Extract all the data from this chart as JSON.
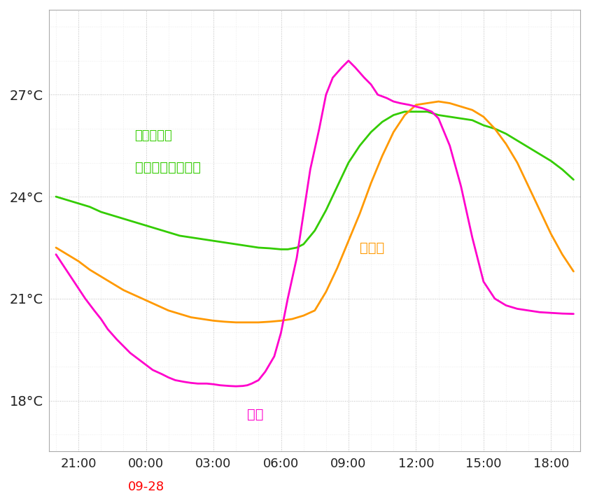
{
  "background_color": "#ffffff",
  "grid_color_major": "#bbbbbb",
  "grid_color_minor": "#dddddd",
  "color_green": "#33cc00",
  "color_orange": "#ff9900",
  "color_magenta": "#ff00cc",
  "ylim": [
    16.5,
    29.5
  ],
  "xlim": [
    -0.3,
    23.3
  ],
  "yticks": [
    18,
    21,
    24,
    27
  ],
  "ytick_labels": [
    "18°C",
    "21°C",
    "24°C",
    "27°C"
  ],
  "xtick_positions": [
    1,
    4,
    7,
    10,
    13,
    16,
    19,
    22
  ],
  "xtick_labels": [
    "21:00",
    "00:00",
    "03:00",
    "06:00",
    "09:00",
    "12:00",
    "15:00",
    "18:00"
  ],
  "date_label": "09-28",
  "date_x_pos": 4,
  "label_green1": "（無断炱）",
  "label_green2": "断熱リフォーム前",
  "label_orange": "無断炱",
  "label_magenta": "屋外",
  "green_x": [
    0,
    0.5,
    1,
    1.5,
    2,
    2.5,
    3,
    3.5,
    4,
    4.5,
    5,
    5.5,
    6,
    6.5,
    7,
    7.5,
    8,
    8.5,
    9,
    9.5,
    10,
    10.3,
    10.7,
    11,
    11.5,
    12,
    12.5,
    13,
    13.5,
    14,
    14.5,
    15,
    15.5,
    16,
    16.5,
    17,
    17.5,
    18,
    18.5,
    19,
    19.5,
    20,
    20.5,
    21,
    21.5,
    22,
    22.5,
    23
  ],
  "green_y": [
    24.0,
    23.9,
    23.8,
    23.7,
    23.55,
    23.45,
    23.35,
    23.25,
    23.15,
    23.05,
    22.95,
    22.85,
    22.8,
    22.75,
    22.7,
    22.65,
    22.6,
    22.55,
    22.5,
    22.48,
    22.45,
    22.45,
    22.5,
    22.6,
    23.0,
    23.6,
    24.3,
    25.0,
    25.5,
    25.9,
    26.2,
    26.4,
    26.5,
    26.5,
    26.5,
    26.4,
    26.35,
    26.3,
    26.25,
    26.1,
    26.0,
    25.85,
    25.65,
    25.45,
    25.25,
    25.05,
    24.8,
    24.5
  ],
  "orange_x": [
    0,
    0.5,
    1,
    1.5,
    2,
    2.5,
    3,
    3.5,
    4,
    4.5,
    5,
    5.5,
    6,
    6.5,
    7,
    7.5,
    8,
    8.5,
    9,
    9.5,
    10,
    10.5,
    11,
    11.5,
    12,
    12.5,
    13,
    13.5,
    14,
    14.5,
    15,
    15.5,
    16,
    16.5,
    17,
    17.5,
    18,
    18.5,
    19,
    19.5,
    20,
    20.5,
    21,
    21.5,
    22,
    22.5,
    23
  ],
  "orange_y": [
    22.5,
    22.3,
    22.1,
    21.85,
    21.65,
    21.45,
    21.25,
    21.1,
    20.95,
    20.8,
    20.65,
    20.55,
    20.45,
    20.4,
    20.35,
    20.32,
    20.3,
    20.3,
    20.3,
    20.32,
    20.35,
    20.4,
    20.5,
    20.65,
    21.2,
    21.9,
    22.7,
    23.5,
    24.4,
    25.2,
    25.9,
    26.4,
    26.7,
    26.75,
    26.8,
    26.75,
    26.65,
    26.55,
    26.35,
    26.0,
    25.55,
    25.0,
    24.3,
    23.6,
    22.9,
    22.3,
    21.8
  ],
  "magenta_x": [
    0,
    0.3,
    0.7,
    1,
    1.3,
    1.7,
    2,
    2.3,
    2.7,
    3,
    3.3,
    3.7,
    4,
    4.3,
    4.7,
    5,
    5.3,
    5.7,
    6,
    6.3,
    6.7,
    7,
    7.3,
    7.7,
    8,
    8.3,
    8.5,
    8.7,
    9,
    9.3,
    9.7,
    10,
    10.3,
    10.7,
    11,
    11.3,
    11.7,
    12,
    12.3,
    12.7,
    13,
    13.3,
    13.7,
    14,
    14.3,
    14.7,
    15,
    15.3,
    15.7,
    16,
    16.3,
    16.7,
    17,
    17.5,
    18,
    18.5,
    19,
    19.5,
    20,
    20.5,
    21,
    21.5,
    22,
    22.5,
    23
  ],
  "magenta_y": [
    22.3,
    22.0,
    21.6,
    21.3,
    21.0,
    20.65,
    20.4,
    20.1,
    19.8,
    19.6,
    19.4,
    19.2,
    19.05,
    18.9,
    18.78,
    18.68,
    18.6,
    18.55,
    18.52,
    18.5,
    18.5,
    18.48,
    18.45,
    18.43,
    18.42,
    18.43,
    18.45,
    18.5,
    18.6,
    18.85,
    19.3,
    20.0,
    21.0,
    22.2,
    23.5,
    24.8,
    26.0,
    27.0,
    27.5,
    27.8,
    28.0,
    27.8,
    27.5,
    27.3,
    27.0,
    26.9,
    26.8,
    26.75,
    26.7,
    26.65,
    26.6,
    26.5,
    26.3,
    25.5,
    24.3,
    22.8,
    21.5,
    21.0,
    20.8,
    20.7,
    20.65,
    20.6,
    20.58,
    20.56,
    20.55
  ]
}
